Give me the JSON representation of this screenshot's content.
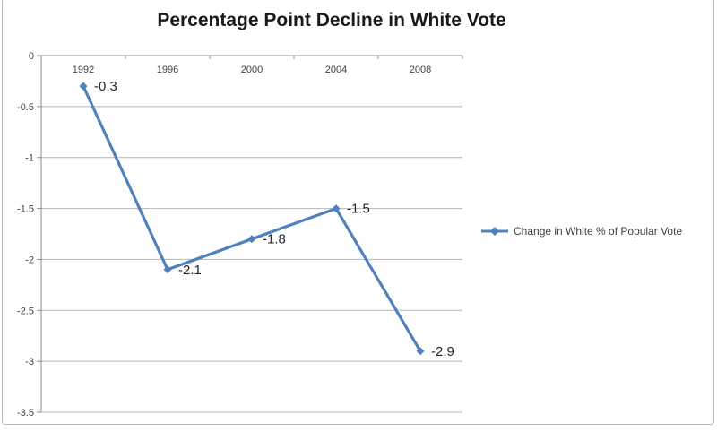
{
  "chart_data": {
    "type": "line",
    "title": "Percentage Point Decline in White Vote",
    "categories": [
      "1992",
      "1996",
      "2000",
      "2004",
      "2008"
    ],
    "series": [
      {
        "name": "Change in White % of Popular Vote",
        "color": "#4F81BD",
        "marker": "diamond",
        "values": [
          -0.3,
          -2.1,
          -1.8,
          -1.5,
          -2.9
        ]
      }
    ],
    "data_labels": [
      "-0.3",
      "-2.1",
      "-1.8",
      "-1.5",
      "-2.9"
    ],
    "xlabel": "",
    "ylabel": "",
    "ylim": [
      -3.5,
      0
    ],
    "ytick_step": 0.5,
    "ytick_labels": [
      "0",
      "-0.5",
      "-1",
      "-1.5",
      "-2",
      "-2.5",
      "-3",
      "-3.5"
    ],
    "grid": true,
    "legend": {
      "position": "right",
      "label": "Change in White % of Popular Vote"
    }
  },
  "colors": {
    "series_blue": "#4F81BD",
    "gridline": "#b5b5b5",
    "axis": "#8c8c8c"
  }
}
